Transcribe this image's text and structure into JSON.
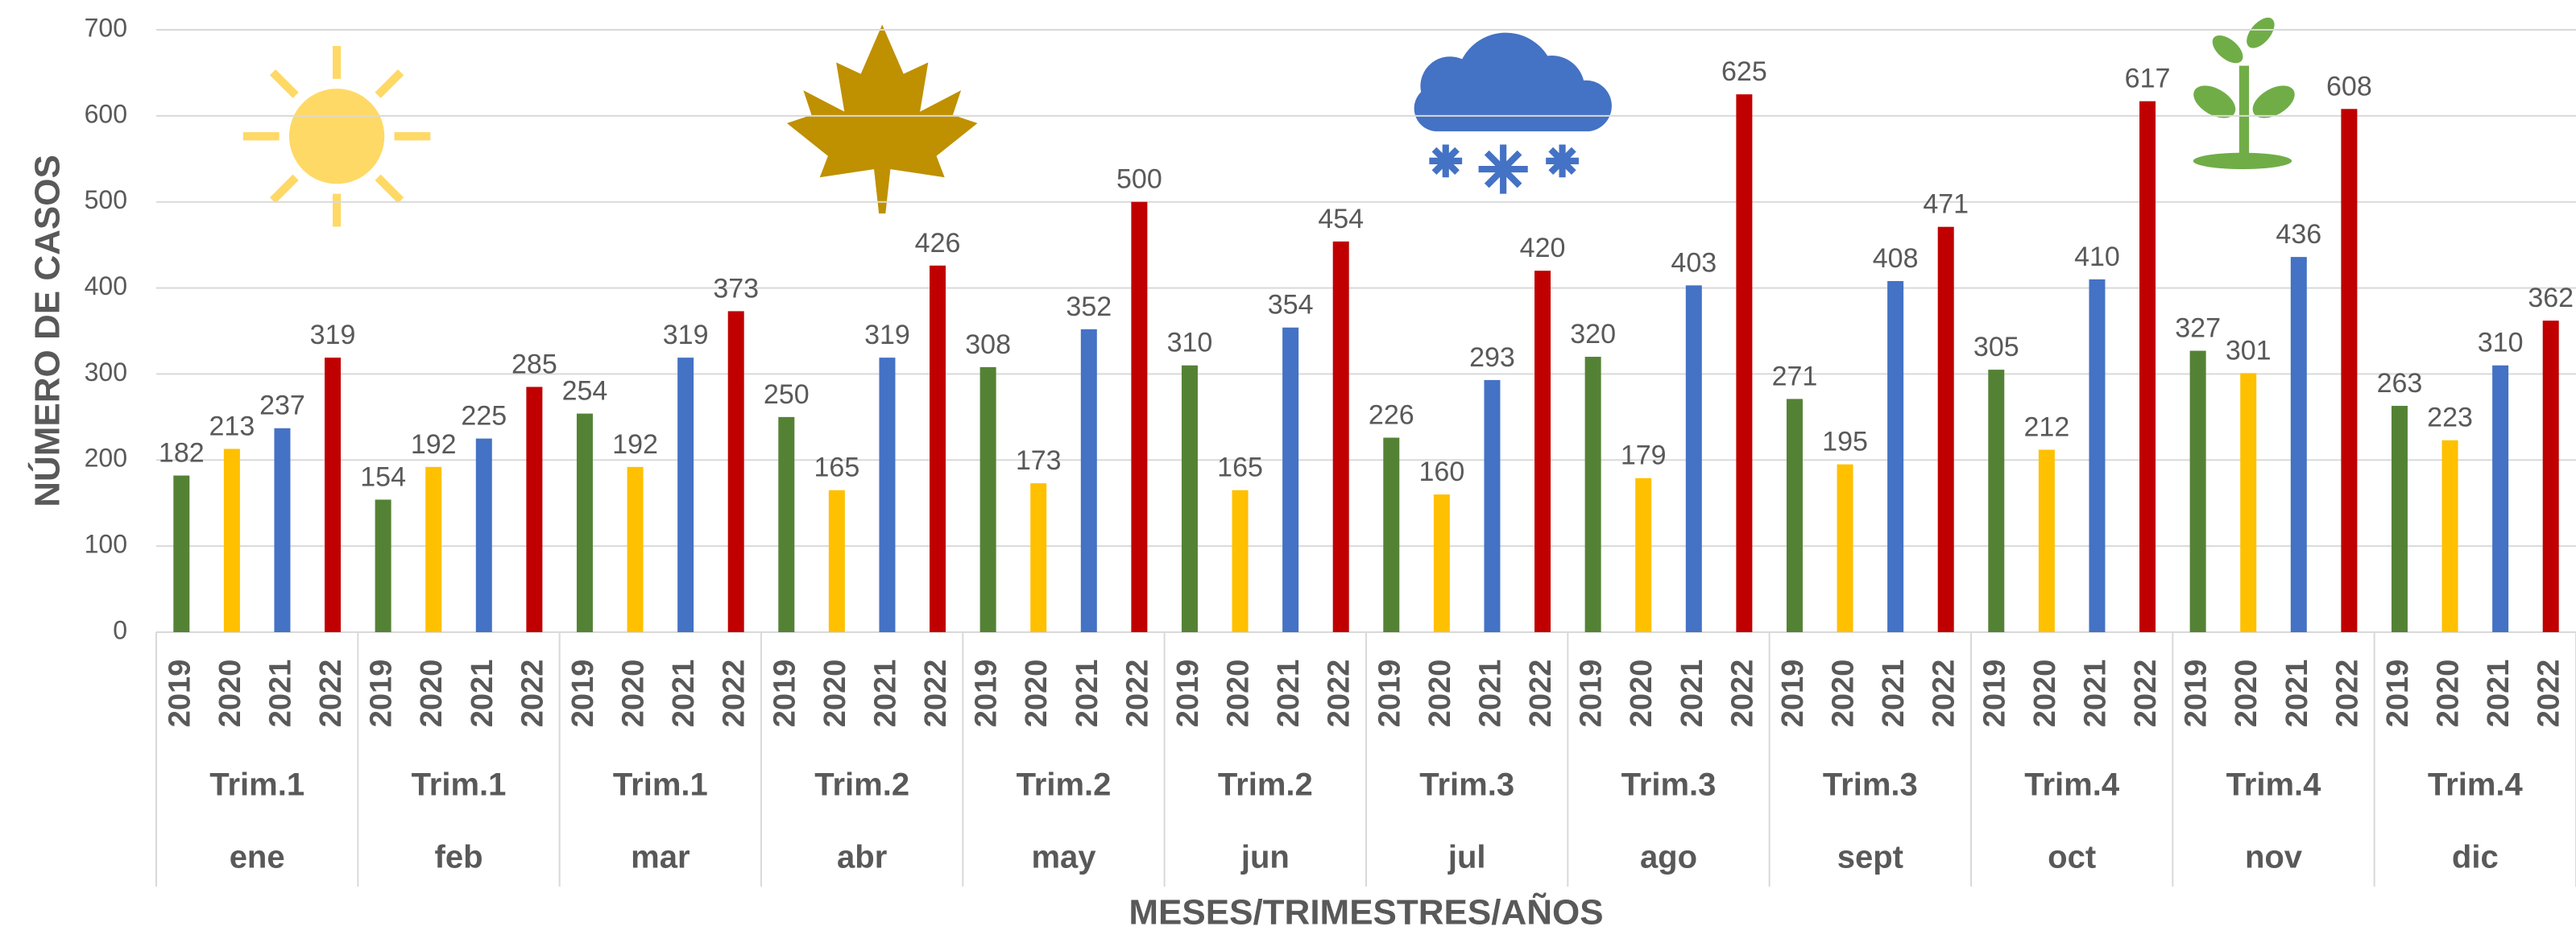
{
  "chart_data": {
    "type": "bar",
    "ylabel": "NÚMERO DE CASOS",
    "xlabel": "MESES/TRIMESTRES/AÑOS",
    "categories": [
      "ene",
      "feb",
      "mar",
      "abr",
      "may",
      "jun",
      "jul",
      "ago",
      "sept",
      "oct",
      "nov",
      "dic"
    ],
    "trimesters": [
      "Trim.1",
      "Trim.1",
      "Trim.1",
      "Trim.2",
      "Trim.2",
      "Trim.2",
      "Trim.3",
      "Trim.3",
      "Trim.3",
      "Trim.4",
      "Trim.4",
      "Trim.4"
    ],
    "series": [
      {
        "name": "2019",
        "color": "#548235",
        "values": [
          182,
          154,
          254,
          250,
          308,
          310,
          226,
          320,
          271,
          305,
          327,
          263
        ]
      },
      {
        "name": "2020",
        "color": "#ffc000",
        "values": [
          213,
          192,
          192,
          165,
          173,
          165,
          160,
          179,
          195,
          212,
          301,
          223
        ]
      },
      {
        "name": "2021",
        "color": "#4472c4",
        "values": [
          237,
          225,
          319,
          319,
          352,
          354,
          293,
          403,
          408,
          410,
          436,
          310
        ]
      },
      {
        "name": "2022",
        "color": "#c00000",
        "values": [
          319,
          285,
          373,
          426,
          500,
          454,
          420,
          625,
          471,
          617,
          608,
          362
        ]
      }
    ],
    "ylim": [
      0,
      700
    ],
    "yticks": [
      0,
      100,
      200,
      300,
      400,
      500,
      600,
      700
    ],
    "grid": true
  }
}
